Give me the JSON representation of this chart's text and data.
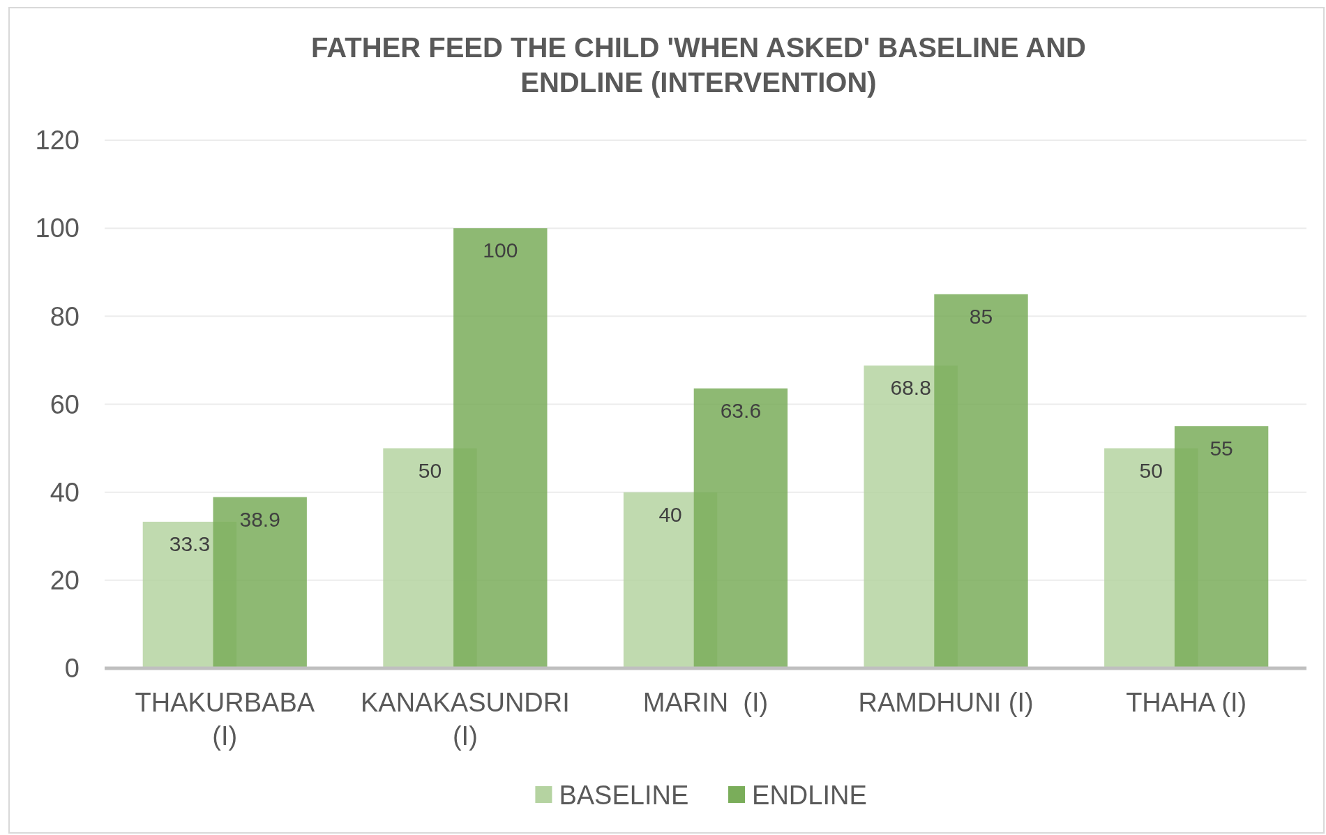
{
  "chart_data": {
    "type": "bar",
    "title": "FATHER FEED THE CHILD 'WHEN ASKED' BASELINE AND ENDLINE (INTERVENTION)",
    "categories": [
      "THAKURBABA (I)",
      "KANAKASUNDRI (I)",
      "MARIN  (I)",
      "RAMDHUNI (I)",
      "THAHA (I)"
    ],
    "series": [
      {
        "name": "BASELINE",
        "color": "#b5d3a1",
        "values": [
          33.3,
          50,
          40,
          68.8,
          50
        ]
      },
      {
        "name": "ENDLINE",
        "color": "#7aad5a",
        "values": [
          38.9,
          100,
          63.6,
          85,
          55
        ]
      }
    ],
    "ylim": [
      0,
      120
    ],
    "yticks": [
      0,
      20,
      40,
      60,
      80,
      100,
      120
    ],
    "grid": "y",
    "legend": "bottom",
    "data_labels": true
  }
}
